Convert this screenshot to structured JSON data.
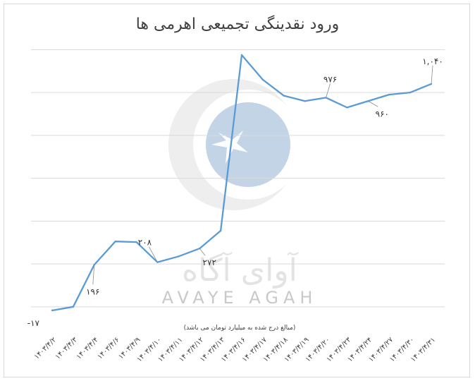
{
  "chart_data": {
    "type": "line",
    "title": "ورود نقدینگی تجمیعی اهرمی ها",
    "subtitle": "(مبالغ درج شده به میلیارد تومان می باشد)",
    "xlabel": "",
    "ylabel": "",
    "grid": true,
    "legend": "none",
    "categories": [
      "۱۴۰۳/۴/۲",
      "۱۴۰۳/۴/۳",
      "۱۴۰۳/۴/۴",
      "۱۴۰۳/۴/۶",
      "۱۴۰۳/۴/۹",
      "۱۴۰۳/۴/۱۰",
      "۱۴۰۳/۴/۱۱",
      "۱۴۰۳/۴/۱۲",
      "۱۴۰۳/۴/۱۳",
      "۱۴۰۳/۴/۱۶",
      "۱۴۰۳/۴/۱۷",
      "۱۴۰۳/۴/۱۸",
      "۱۴۰۳/۴/۱۹",
      "۱۴۰۳/۴/۲۰",
      "۱۴۰۳/۴/۲۳",
      "۱۴۰۳/۴/۲۴",
      "۱۴۰۳/۴/۲۷",
      "۱۴۰۳/۴/۳۰",
      "۱۴۰۳/۴/۳۱"
    ],
    "values": [
      -17,
      0,
      196,
      305,
      302,
      208,
      235,
      272,
      355,
      1175,
      1060,
      985,
      960,
      976,
      930,
      960,
      990,
      1000,
      1040
    ],
    "ylim": [
      -50,
      1300
    ],
    "y_gridlines": [
      0,
      200,
      400,
      600,
      800,
      1000,
      1200
    ],
    "data_labels": [
      {
        "index": 0,
        "text": "-۱۷"
      },
      {
        "index": 2,
        "text": "۱۹۶"
      },
      {
        "index": 5,
        "text": "۲۰۸"
      },
      {
        "index": 7,
        "text": "۲۷۲"
      },
      {
        "index": 13,
        "text": "۹۷۶"
      },
      {
        "index": 15,
        "text": "۹۶۰"
      },
      {
        "index": 18,
        "text": "۱,۰۴۰"
      }
    ],
    "line_color": "#5B9BD5",
    "grid_color": "#d9d9d9"
  },
  "watermark": {
    "text_en": "AVAYE AGAH",
    "text_fa": "آوای آگاه",
    "icon": "crescent-star-logo-icon"
  }
}
